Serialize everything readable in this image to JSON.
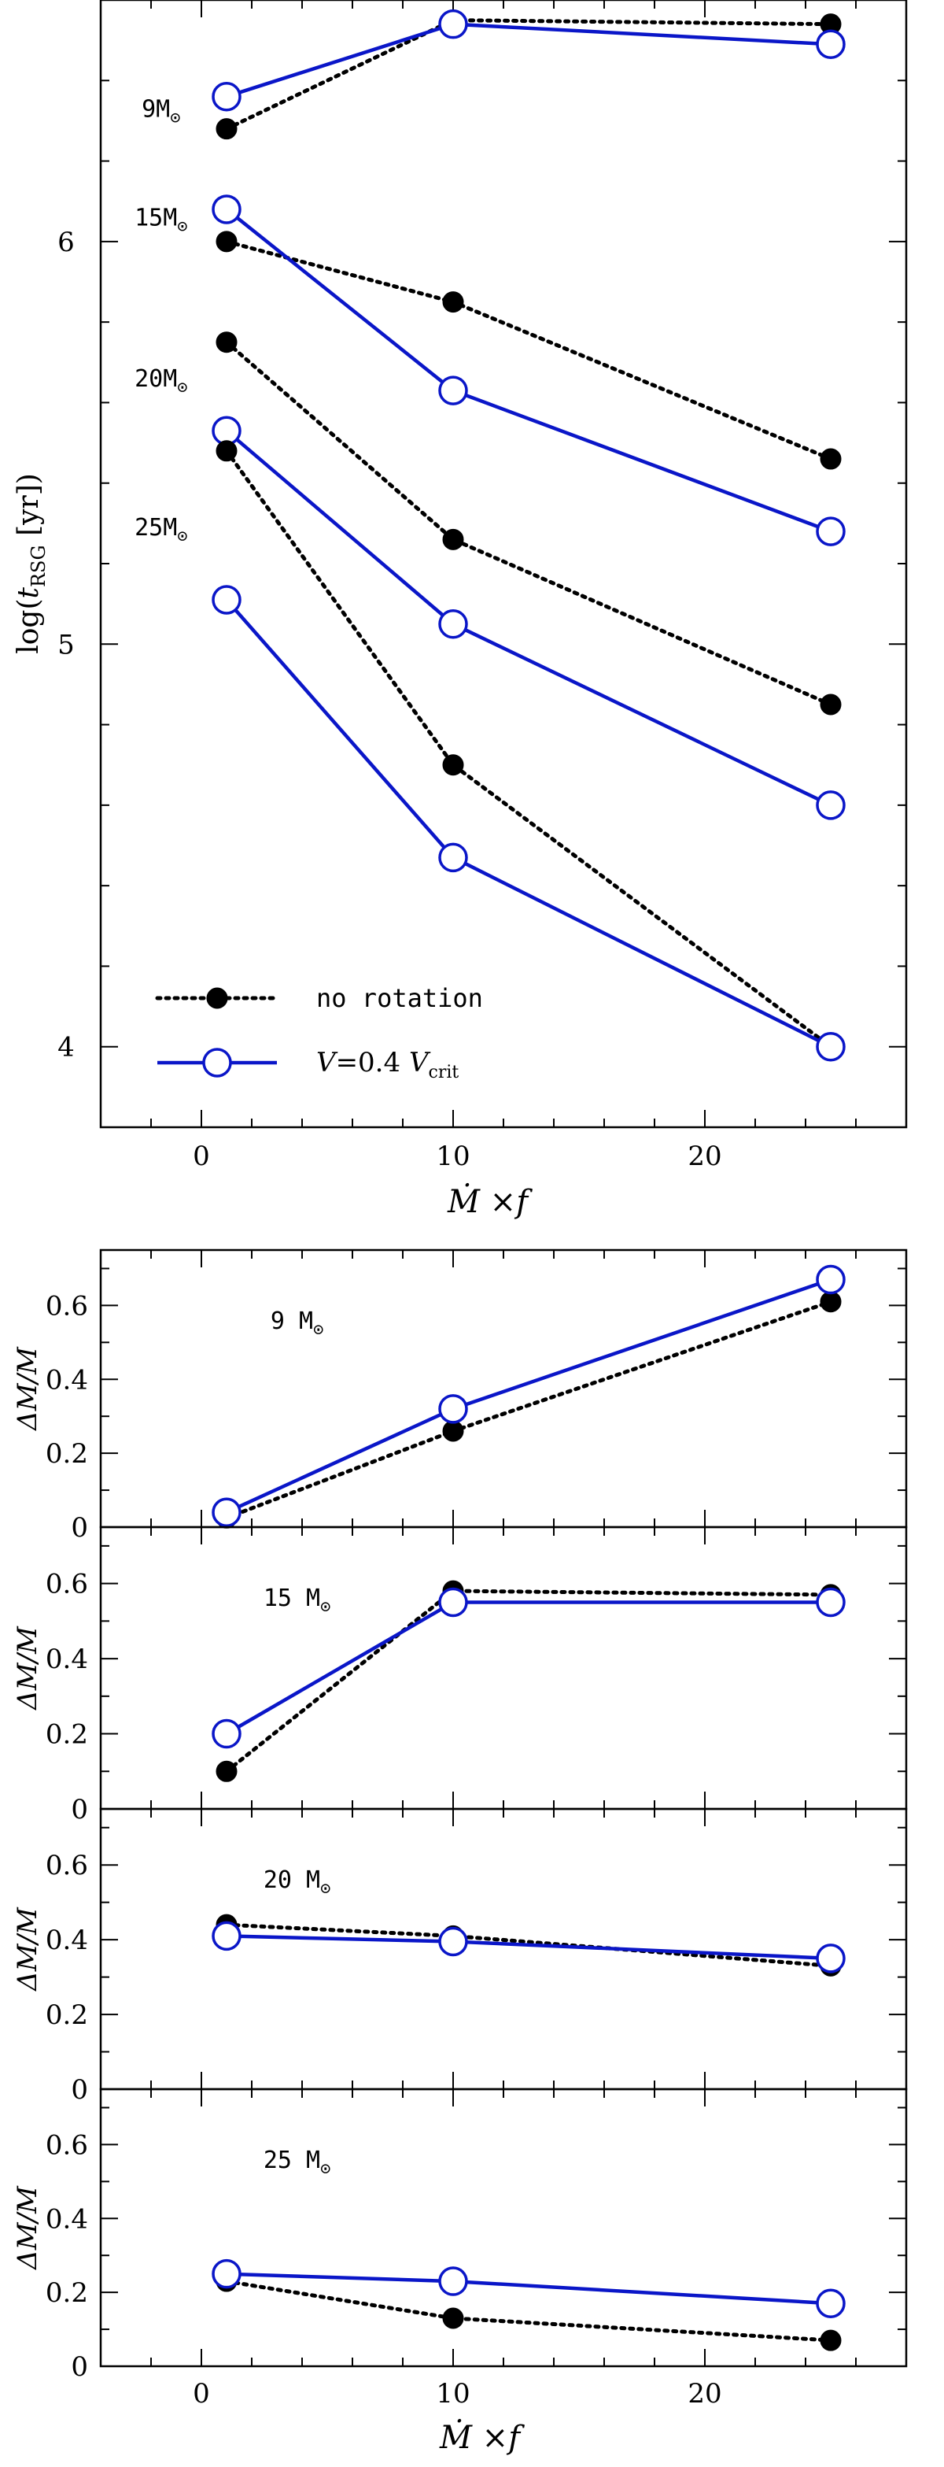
{
  "chart_data": [
    {
      "type": "line",
      "id": "tRSG",
      "xlabel": "Ṁ ×f",
      "ylabel": "log(t_RSG [yr])",
      "ylabel_main": "log(",
      "ylabel_t": "t",
      "ylabel_sub": "RSG",
      "ylabel_tail": " [yr])",
      "xlim": [
        -4,
        28
      ],
      "ylim": [
        3.8,
        6.6
      ],
      "xticks": [
        0,
        10,
        20
      ],
      "yticks": [
        4,
        5,
        6
      ],
      "legend": {
        "position": "bottom-left",
        "entries": [
          {
            "series": "no rotation",
            "label": "no rotation"
          },
          {
            "series": "V=0.4 Vcrit",
            "label_main": "V",
            "label_eq": "=0.4 ",
            "label_v": "V",
            "label_sub": "crit"
          }
        ]
      },
      "annotations": [
        {
          "text": "9M",
          "sun": "⊙",
          "x": -1.6,
          "y": 6.31
        },
        {
          "text": "15M",
          "sun": "⊙",
          "x": -1.6,
          "y": 6.04
        },
        {
          "text": "20M",
          "sun": "⊙",
          "x": -1.6,
          "y": 5.64
        },
        {
          "text": "25M",
          "sun": "⊙",
          "x": -1.6,
          "y": 5.27
        }
      ],
      "x": [
        1,
        10,
        25
      ],
      "series": [
        {
          "name": "9 Msun no rotation",
          "style": "no rotation",
          "values": [
            6.28,
            6.55,
            6.54
          ]
        },
        {
          "name": "9 Msun V=0.4 Vcrit",
          "style": "rotation",
          "values": [
            6.36,
            6.54,
            6.49
          ]
        },
        {
          "name": "15 Msun no rotation",
          "style": "no rotation",
          "values": [
            6.0,
            5.85,
            5.46
          ]
        },
        {
          "name": "15 Msun V=0.4 Vcrit",
          "style": "rotation",
          "values": [
            6.08,
            5.63,
            5.28
          ]
        },
        {
          "name": "20 Msun no rotation",
          "style": "no rotation",
          "values": [
            5.75,
            5.26,
            4.85
          ]
        },
        {
          "name": "20 Msun V=0.4 Vcrit",
          "style": "rotation",
          "values": [
            5.53,
            5.05,
            4.6
          ]
        },
        {
          "name": "25 Msun no rotation",
          "style": "no rotation",
          "values": [
            5.48,
            4.7,
            4.0
          ]
        },
        {
          "name": "25 Msun V=0.4 Vcrit",
          "style": "rotation",
          "values": [
            5.11,
            4.47,
            4.0
          ]
        }
      ]
    },
    {
      "type": "line",
      "id": "dm9",
      "title": "9 M",
      "sun": "⊙",
      "ylabel": "ΔM/M",
      "xlim": [
        -4,
        28
      ],
      "ylim": [
        0,
        0.75
      ],
      "yticks": [
        0,
        0.2,
        0.4,
        0.6
      ],
      "yticklabels": [
        "0",
        "0.2",
        "0.4",
        "0.6"
      ],
      "x": [
        1,
        10,
        25
      ],
      "series": [
        {
          "name": "no rotation",
          "style": "no rotation",
          "values": [
            0.025,
            0.26,
            0.61
          ]
        },
        {
          "name": "V=0.4 Vcrit",
          "style": "rotation",
          "values": [
            0.04,
            0.32,
            0.67
          ]
        }
      ]
    },
    {
      "type": "line",
      "id": "dm15",
      "title": "15 M",
      "sun": "⊙",
      "ylabel": "ΔM/M",
      "xlim": [
        -4,
        28
      ],
      "ylim": [
        0,
        0.75
      ],
      "yticks": [
        0,
        0.2,
        0.4,
        0.6
      ],
      "yticklabels": [
        "0",
        "0.2",
        "0.4",
        "0.6"
      ],
      "x": [
        1,
        10,
        25
      ],
      "series": [
        {
          "name": "no rotation",
          "style": "no rotation",
          "values": [
            0.1,
            0.58,
            0.57
          ]
        },
        {
          "name": "V=0.4 Vcrit",
          "style": "rotation",
          "values": [
            0.2,
            0.55,
            0.55
          ]
        }
      ]
    },
    {
      "type": "line",
      "id": "dm20",
      "title": "20 M",
      "sun": "⊙",
      "ylabel": "ΔM/M",
      "xlim": [
        -4,
        28
      ],
      "ylim": [
        0,
        0.75
      ],
      "yticks": [
        0,
        0.2,
        0.4,
        0.6
      ],
      "yticklabels": [
        "0",
        "0.2",
        "0.4",
        "0.6"
      ],
      "x": [
        1,
        10,
        25
      ],
      "series": [
        {
          "name": "no rotation",
          "style": "no rotation",
          "values": [
            0.44,
            0.41,
            0.33
          ]
        },
        {
          "name": "V=0.4 Vcrit",
          "style": "rotation",
          "values": [
            0.41,
            0.395,
            0.35
          ]
        }
      ]
    },
    {
      "type": "line",
      "id": "dm25",
      "title": "25 M",
      "sun": "⊙",
      "ylabel": "ΔM/M",
      "xlabel": "Ṁ ×f",
      "xlim": [
        -4,
        28
      ],
      "ylim": [
        0,
        0.75
      ],
      "xticks": [
        0,
        10,
        20
      ],
      "yticks": [
        0,
        0.2,
        0.4,
        0.6
      ],
      "yticklabels": [
        "0",
        "0.2",
        "0.4",
        "0.6"
      ],
      "x": [
        1,
        10,
        25
      ],
      "series": [
        {
          "name": "no rotation",
          "style": "no rotation",
          "values": [
            0.23,
            0.13,
            0.07
          ]
        },
        {
          "name": "V=0.4 Vcrit",
          "style": "rotation",
          "values": [
            0.25,
            0.23,
            0.17
          ]
        }
      ]
    }
  ],
  "colors": {
    "rotation": "#0a16c8",
    "no_rotation": "#000000"
  }
}
